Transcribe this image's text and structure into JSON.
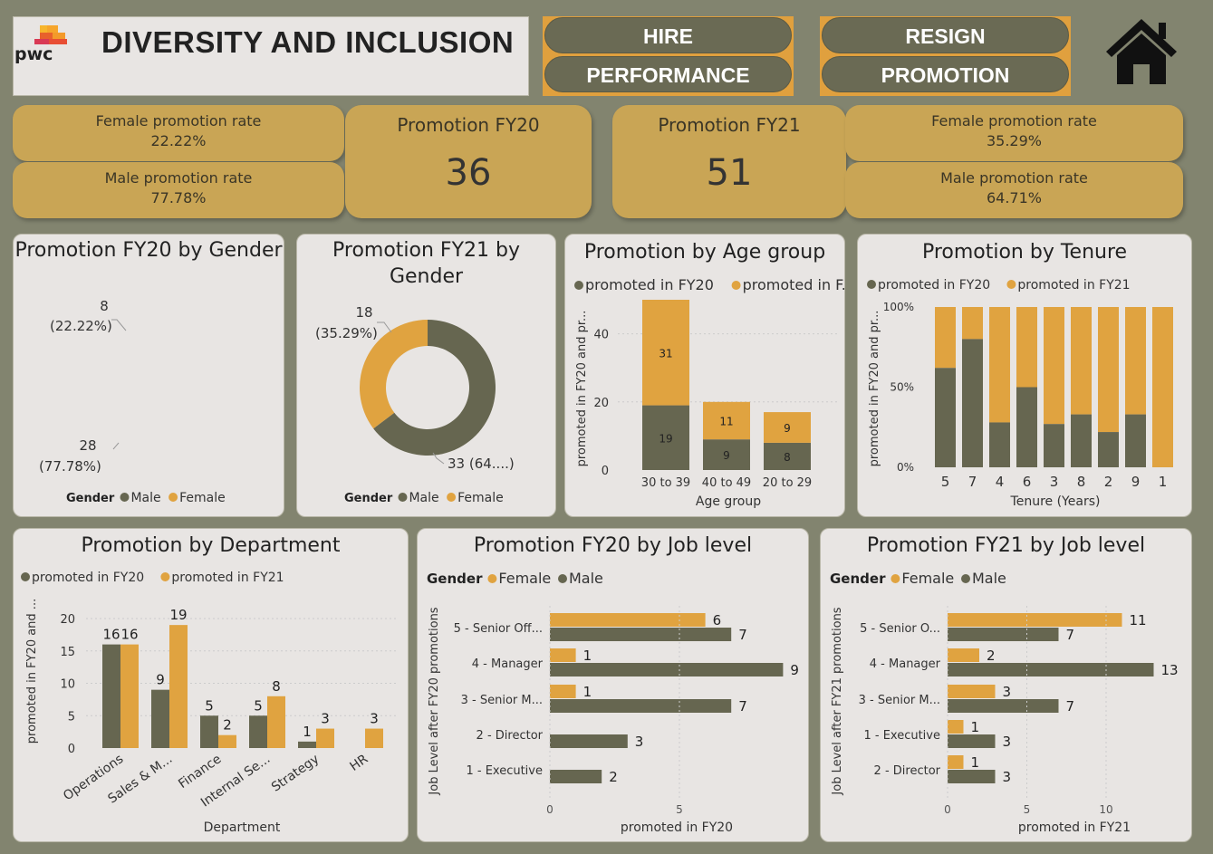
{
  "header": {
    "title": "DIVERSITY AND INCLUSION",
    "logo_text": "pwc"
  },
  "nav": {
    "hire": "HIRE",
    "performance": "PERFORMANCE",
    "resign": "RESIGN",
    "promotion": "PROMOTION"
  },
  "kpis": {
    "fy20_female_label": "Female promotion rate",
    "fy20_female_value": "22.22%",
    "fy20_male_label": "Male promotion rate",
    "fy20_male_value": "77.78%",
    "fy20_total_label": "Promotion FY20",
    "fy20_total_value": "36",
    "fy21_total_label": "Promotion FY21",
    "fy21_total_value": "51",
    "fy21_female_label": "Female promotion rate",
    "fy21_female_value": "35.29%",
    "fy21_male_label": "Male promotion rate",
    "fy21_male_value": "64.71%"
  },
  "colors": {
    "male": "#666650",
    "female": "#e0a340",
    "bg": "#82846f",
    "card": "#e8e5e3",
    "kpi": "#c9a555"
  },
  "legend": {
    "gender": "Gender",
    "male": "Male",
    "female": "Female",
    "fy20": "promoted in FY20",
    "fy21": "promoted in FY21",
    "fy21_trunc": "promoted in F..."
  },
  "chart_data": [
    {
      "id": "donut_fy20",
      "type": "pie",
      "title": "Promotion FY20 by Gender",
      "legend_title": "Gender",
      "categories": [
        "Male",
        "Female"
      ],
      "values": [
        28,
        8
      ],
      "labels": [
        "28",
        "8"
      ],
      "pct_labels": [
        "(77.78%)",
        "(22.22%)"
      ]
    },
    {
      "id": "donut_fy21",
      "type": "pie",
      "title": "Promotion FY21 by Gender",
      "legend_title": "Gender",
      "categories": [
        "Male",
        "Female"
      ],
      "values": [
        33,
        18
      ],
      "labels": [
        "33 (64....)",
        "18"
      ],
      "pct_labels": [
        "",
        "(35.29%)"
      ]
    },
    {
      "id": "age",
      "type": "bar",
      "stacked": true,
      "title": "Promotion by Age group",
      "xlabel": "Age group",
      "ylabel": "promoted in FY20 and pr...",
      "categories": [
        "30 to 39",
        "40 to 49",
        "20 to 29"
      ],
      "series": [
        {
          "name": "promoted in FY20",
          "values": [
            19,
            9,
            8
          ]
        },
        {
          "name": "promoted in FY21",
          "values": [
            31,
            11,
            9
          ]
        }
      ],
      "ylim": [
        0,
        50
      ],
      "yticks": [
        "0",
        "20",
        "40"
      ]
    },
    {
      "id": "tenure",
      "type": "bar",
      "stacked": true,
      "percent": true,
      "title": "Promotion by Tenure",
      "xlabel": "Tenure (Years)",
      "ylabel": "promoted in FY20 and pr...",
      "categories": [
        "5",
        "7",
        "4",
        "6",
        "3",
        "8",
        "2",
        "9",
        "1"
      ],
      "series": [
        {
          "name": "promoted in FY20",
          "values": [
            62,
            80,
            28,
            50,
            27,
            33,
            22,
            33,
            0
          ]
        },
        {
          "name": "promoted in FY21",
          "values": [
            38,
            20,
            72,
            50,
            73,
            67,
            78,
            67,
            100
          ]
        }
      ],
      "yticks": [
        "0%",
        "50%",
        "100%"
      ]
    },
    {
      "id": "department",
      "type": "bar",
      "title": "Promotion by Department",
      "xlabel": "Department",
      "ylabel": "promoted in FY20 and ...",
      "categories": [
        "Operations",
        "Sales & M...",
        "Finance",
        "Internal Se...",
        "Strategy",
        "HR"
      ],
      "series": [
        {
          "name": "promoted in FY20",
          "values": [
            16,
            9,
            5,
            5,
            1,
            null
          ]
        },
        {
          "name": "promoted in FY21",
          "values": [
            16,
            19,
            2,
            8,
            3,
            3
          ]
        }
      ],
      "ylim": [
        0,
        20
      ],
      "yticks": [
        "0",
        "5",
        "10",
        "15",
        "20"
      ]
    },
    {
      "id": "joblevel_fy20",
      "type": "bar",
      "orientation": "horizontal",
      "title": "Promotion FY20 by Job level",
      "xlabel": "promoted in FY20",
      "ylabel": "Job Level after FY20 promotions",
      "legend_title": "Gender",
      "categories": [
        "5 - Senior Off...",
        "4 - Manager",
        "3 - Senior M...",
        "2 - Director",
        "1 - Executive"
      ],
      "series": [
        {
          "name": "Female",
          "values": [
            6,
            1,
            1,
            null,
            null
          ]
        },
        {
          "name": "Male",
          "values": [
            7,
            9,
            7,
            3,
            2
          ]
        }
      ],
      "xlim": [
        0,
        10
      ],
      "xticks": [
        "0",
        "5"
      ]
    },
    {
      "id": "joblevel_fy21",
      "type": "bar",
      "orientation": "horizontal",
      "title": "Promotion FY21 by Job level",
      "xlabel": "promoted in FY21",
      "ylabel": "Job Level after FY21 promotions",
      "legend_title": "Gender",
      "categories": [
        "5 - Senior O...",
        "4 - Manager",
        "3 - Senior M...",
        "1 - Executive",
        "2 - Director"
      ],
      "series": [
        {
          "name": "Female",
          "values": [
            11,
            2,
            3,
            1,
            1
          ]
        },
        {
          "name": "Male",
          "values": [
            7,
            13,
            7,
            3,
            3
          ]
        }
      ],
      "xlim": [
        0,
        13
      ],
      "xticks": [
        "0",
        "5",
        "10"
      ]
    }
  ]
}
